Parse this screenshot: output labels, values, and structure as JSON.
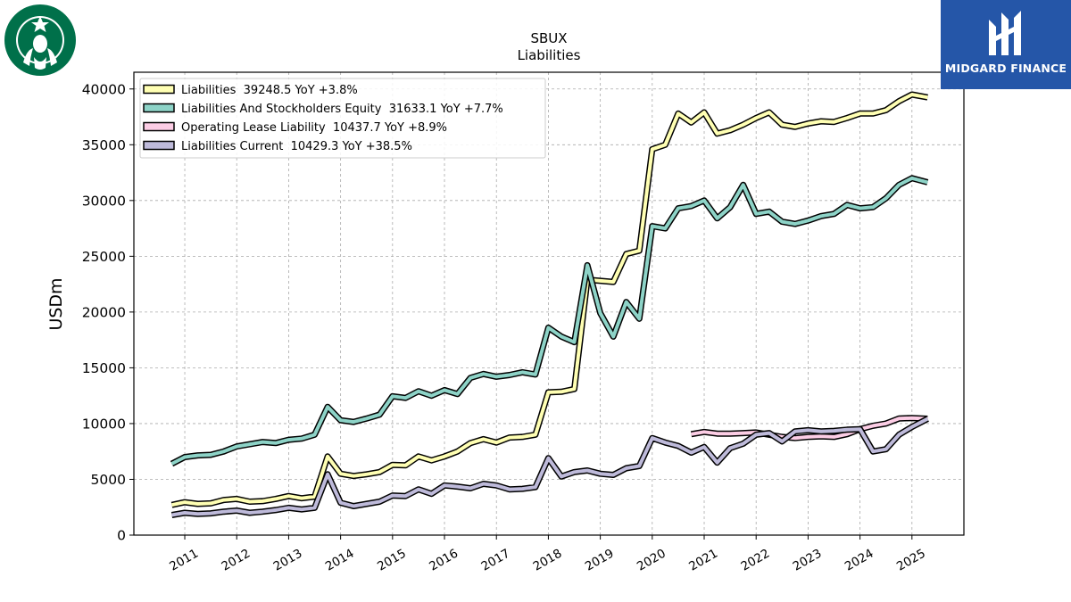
{
  "header": {
    "ticker": "SBUX",
    "subtitle": "Liabilities"
  },
  "logos": {
    "left_icon": "starbucks-siren-logo",
    "right_brand": "MIDGARD FINANCE",
    "right_bg": "#2556a8"
  },
  "chart_data": {
    "type": "line",
    "title": "SBUX",
    "subtitle": "Liabilities",
    "ylabel": "USDm",
    "xlabel": "",
    "ylim": [
      0,
      41500
    ],
    "xlim": [
      2010.02,
      2026.0
    ],
    "y_ticks": [
      0,
      5000,
      10000,
      15000,
      20000,
      25000,
      30000,
      35000,
      40000
    ],
    "x_ticks": [
      "2011",
      "2012",
      "2013",
      "2014",
      "2015",
      "2016",
      "2017",
      "2018",
      "2019",
      "2020",
      "2021",
      "2022",
      "2023",
      "2024",
      "2025"
    ],
    "grid": true,
    "legend_position": "top-left",
    "series": [
      {
        "name": "Liabilities",
        "legend": "Liabilities  39248.5 YoY +3.8%",
        "color": "#ffffb3",
        "points": [
          [
            2010.75,
            2700
          ],
          [
            2011.0,
            2950
          ],
          [
            2011.25,
            2800
          ],
          [
            2011.5,
            2850
          ],
          [
            2011.75,
            3150
          ],
          [
            2012.0,
            3250
          ],
          [
            2012.25,
            3000
          ],
          [
            2012.5,
            3050
          ],
          [
            2012.75,
            3250
          ],
          [
            2013.0,
            3500
          ],
          [
            2013.25,
            3300
          ],
          [
            2013.5,
            3450
          ],
          [
            2013.75,
            7050
          ],
          [
            2014.0,
            5500
          ],
          [
            2014.25,
            5300
          ],
          [
            2014.5,
            5450
          ],
          [
            2014.75,
            5650
          ],
          [
            2015.0,
            6300
          ],
          [
            2015.25,
            6250
          ],
          [
            2015.5,
            7050
          ],
          [
            2015.75,
            6700
          ],
          [
            2016.0,
            7050
          ],
          [
            2016.25,
            7500
          ],
          [
            2016.5,
            8250
          ],
          [
            2016.75,
            8600
          ],
          [
            2017.0,
            8300
          ],
          [
            2017.25,
            8750
          ],
          [
            2017.5,
            8800
          ],
          [
            2017.75,
            9000
          ],
          [
            2018.0,
            12800
          ],
          [
            2018.25,
            12850
          ],
          [
            2018.5,
            13100
          ],
          [
            2018.75,
            22900
          ],
          [
            2019.0,
            22800
          ],
          [
            2019.25,
            22700
          ],
          [
            2019.5,
            25200
          ],
          [
            2019.75,
            25500
          ],
          [
            2020.0,
            34600
          ],
          [
            2020.25,
            35000
          ],
          [
            2020.5,
            37800
          ],
          [
            2020.75,
            37000
          ],
          [
            2021.0,
            37900
          ],
          [
            2021.25,
            36000
          ],
          [
            2021.5,
            36300
          ],
          [
            2021.75,
            36800
          ],
          [
            2022.0,
            37400
          ],
          [
            2022.25,
            37900
          ],
          [
            2022.5,
            36800
          ],
          [
            2022.75,
            36600
          ],
          [
            2023.0,
            36900
          ],
          [
            2023.25,
            37100
          ],
          [
            2023.5,
            37050
          ],
          [
            2023.75,
            37400
          ],
          [
            2024.0,
            37800
          ],
          [
            2024.25,
            37800
          ],
          [
            2024.5,
            38100
          ],
          [
            2024.75,
            38900
          ],
          [
            2025.0,
            39500
          ],
          [
            2025.3,
            39248.5
          ]
        ]
      },
      {
        "name": "Liabilities And Stockholders Equity",
        "legend": "Liabilities And Stockholders Equity  31633.1 YoY +7.7%",
        "color": "#8dd3c7",
        "points": [
          [
            2010.75,
            6400
          ],
          [
            2011.0,
            7000
          ],
          [
            2011.25,
            7150
          ],
          [
            2011.5,
            7200
          ],
          [
            2011.75,
            7500
          ],
          [
            2012.0,
            7950
          ],
          [
            2012.25,
            8150
          ],
          [
            2012.5,
            8350
          ],
          [
            2012.75,
            8250
          ],
          [
            2013.0,
            8550
          ],
          [
            2013.25,
            8650
          ],
          [
            2013.5,
            9000
          ],
          [
            2013.75,
            11500
          ],
          [
            2014.0,
            10300
          ],
          [
            2014.25,
            10150
          ],
          [
            2014.5,
            10450
          ],
          [
            2014.75,
            10800
          ],
          [
            2015.0,
            12450
          ],
          [
            2015.25,
            12300
          ],
          [
            2015.5,
            12900
          ],
          [
            2015.75,
            12500
          ],
          [
            2016.0,
            13000
          ],
          [
            2016.25,
            12650
          ],
          [
            2016.5,
            14100
          ],
          [
            2016.75,
            14450
          ],
          [
            2017.0,
            14200
          ],
          [
            2017.25,
            14350
          ],
          [
            2017.5,
            14600
          ],
          [
            2017.75,
            14400
          ],
          [
            2018.0,
            18600
          ],
          [
            2018.25,
            17800
          ],
          [
            2018.5,
            17300
          ],
          [
            2018.75,
            24200
          ],
          [
            2019.0,
            19900
          ],
          [
            2019.25,
            17800
          ],
          [
            2019.5,
            20900
          ],
          [
            2019.75,
            19400
          ],
          [
            2020.0,
            27700
          ],
          [
            2020.25,
            27500
          ],
          [
            2020.5,
            29300
          ],
          [
            2020.75,
            29500
          ],
          [
            2021.0,
            30000
          ],
          [
            2021.25,
            28400
          ],
          [
            2021.5,
            29400
          ],
          [
            2021.75,
            31400
          ],
          [
            2022.0,
            28800
          ],
          [
            2022.25,
            29000
          ],
          [
            2022.5,
            28100
          ],
          [
            2022.75,
            27900
          ],
          [
            2023.0,
            28200
          ],
          [
            2023.25,
            28600
          ],
          [
            2023.5,
            28800
          ],
          [
            2023.75,
            29600
          ],
          [
            2024.0,
            29300
          ],
          [
            2024.25,
            29400
          ],
          [
            2024.5,
            30200
          ],
          [
            2024.75,
            31400
          ],
          [
            2025.0,
            32000
          ],
          [
            2025.3,
            31633.1
          ]
        ]
      },
      {
        "name": "Operating Lease Liability",
        "legend": "Operating Lease Liability  10437.7 YoY +8.9%",
        "color": "#fccde5",
        "points": [
          [
            2020.75,
            9050
          ],
          [
            2021.0,
            9250
          ],
          [
            2021.25,
            9100
          ],
          [
            2021.5,
            9100
          ],
          [
            2021.75,
            9150
          ],
          [
            2022.0,
            9200
          ],
          [
            2022.25,
            9000
          ],
          [
            2022.5,
            8800
          ],
          [
            2022.75,
            8700
          ],
          [
            2023.0,
            8800
          ],
          [
            2023.25,
            8850
          ],
          [
            2023.5,
            8800
          ],
          [
            2023.75,
            9050
          ],
          [
            2024.0,
            9500
          ],
          [
            2024.25,
            9800
          ],
          [
            2024.5,
            10000
          ],
          [
            2024.75,
            10450
          ],
          [
            2025.0,
            10500
          ],
          [
            2025.3,
            10437.7
          ]
        ]
      },
      {
        "name": "Liabilities Current",
        "legend": "Liabilities Current  10429.3 YoY +38.5%",
        "color": "#bebada",
        "points": [
          [
            2010.75,
            1800
          ],
          [
            2011.0,
            2000
          ],
          [
            2011.25,
            1900
          ],
          [
            2011.5,
            1950
          ],
          [
            2011.75,
            2100
          ],
          [
            2012.0,
            2200
          ],
          [
            2012.25,
            2000
          ],
          [
            2012.5,
            2100
          ],
          [
            2012.75,
            2250
          ],
          [
            2013.0,
            2450
          ],
          [
            2013.25,
            2300
          ],
          [
            2013.5,
            2450
          ],
          [
            2013.75,
            5450
          ],
          [
            2014.0,
            2900
          ],
          [
            2014.25,
            2600
          ],
          [
            2014.5,
            2800
          ],
          [
            2014.75,
            3000
          ],
          [
            2015.0,
            3550
          ],
          [
            2015.25,
            3500
          ],
          [
            2015.5,
            4100
          ],
          [
            2015.75,
            3700
          ],
          [
            2016.0,
            4450
          ],
          [
            2016.25,
            4350
          ],
          [
            2016.5,
            4200
          ],
          [
            2016.75,
            4600
          ],
          [
            2017.0,
            4450
          ],
          [
            2017.25,
            4100
          ],
          [
            2017.5,
            4150
          ],
          [
            2017.75,
            4300
          ],
          [
            2018.0,
            6900
          ],
          [
            2018.25,
            5250
          ],
          [
            2018.5,
            5650
          ],
          [
            2018.75,
            5800
          ],
          [
            2019.0,
            5500
          ],
          [
            2019.25,
            5400
          ],
          [
            2019.5,
            6000
          ],
          [
            2019.75,
            6200
          ],
          [
            2020.0,
            8700
          ],
          [
            2020.25,
            8300
          ],
          [
            2020.5,
            8000
          ],
          [
            2020.75,
            7400
          ],
          [
            2021.0,
            7900
          ],
          [
            2021.25,
            6500
          ],
          [
            2021.5,
            7800
          ],
          [
            2021.75,
            8200
          ],
          [
            2022.0,
            9000
          ],
          [
            2022.25,
            9150
          ],
          [
            2022.5,
            8400
          ],
          [
            2022.75,
            9300
          ],
          [
            2023.0,
            9400
          ],
          [
            2023.25,
            9300
          ],
          [
            2023.5,
            9350
          ],
          [
            2023.75,
            9450
          ],
          [
            2024.0,
            9500
          ],
          [
            2024.25,
            7500
          ],
          [
            2024.5,
            7700
          ],
          [
            2024.75,
            9000
          ],
          [
            2025.0,
            9700
          ],
          [
            2025.3,
            10429.3
          ]
        ]
      }
    ]
  }
}
